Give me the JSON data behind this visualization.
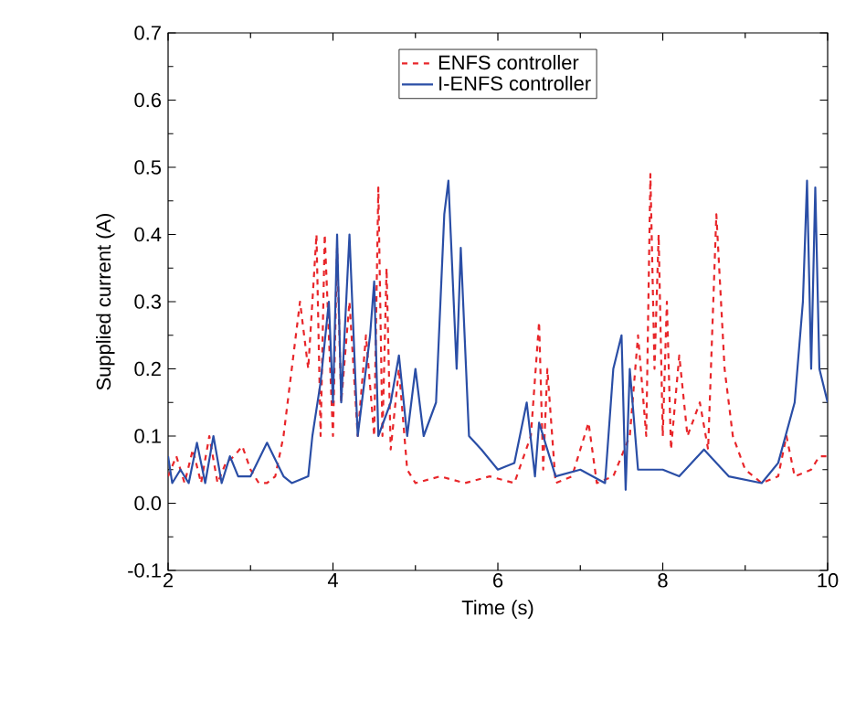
{
  "chart_data": {
    "type": "line",
    "xlabel": "Time (s)",
    "ylabel": "Supplied current (A)",
    "xlim": [
      2,
      10
    ],
    "ylim": [
      -0.1,
      0.7
    ],
    "xticks": [
      2,
      4,
      6,
      8,
      10
    ],
    "yticks": [
      {
        "value": -0.1,
        "label": "-0.1"
      },
      {
        "value": 0,
        "label": "0.0"
      },
      {
        "value": 0.1,
        "label": "0.1"
      },
      {
        "value": 0.2,
        "label": "0.2"
      },
      {
        "value": 0.3,
        "label": "0.3"
      },
      {
        "value": 0.4,
        "label": "0.4"
      },
      {
        "value": 0.5,
        "label": "0.5"
      },
      {
        "value": 0.6,
        "label": "0.6"
      },
      {
        "value": 0.7,
        "label": "0.7"
      }
    ],
    "legend": "top",
    "grid": false,
    "series": [
      {
        "name": "ENFS controller",
        "color": "#e8262a",
        "line_style": "dashed",
        "x": [
          2.0,
          2.1,
          2.2,
          2.3,
          2.4,
          2.5,
          2.6,
          2.7,
          2.8,
          2.9,
          3.0,
          3.1,
          3.2,
          3.3,
          3.4,
          3.5,
          3.6,
          3.7,
          3.8,
          3.85,
          3.9,
          4.0,
          4.05,
          4.1,
          4.2,
          4.3,
          4.4,
          4.5,
          4.55,
          4.6,
          4.65,
          4.7,
          4.8,
          4.9,
          5.0,
          5.3,
          5.6,
          5.9,
          6.2,
          6.4,
          6.5,
          6.55,
          6.6,
          6.7,
          6.9,
          7.1,
          7.2,
          7.4,
          7.6,
          7.7,
          7.8,
          7.85,
          7.9,
          7.95,
          8.0,
          8.05,
          8.1,
          8.2,
          8.3,
          8.45,
          8.55,
          8.65,
          8.75,
          8.85,
          9.0,
          9.2,
          9.4,
          9.5,
          9.6,
          9.8,
          9.9,
          10.0
        ],
        "values": [
          0.04,
          0.07,
          0.03,
          0.08,
          0.03,
          0.1,
          0.03,
          0.06,
          0.07,
          0.085,
          0.05,
          0.03,
          0.03,
          0.04,
          0.1,
          0.2,
          0.3,
          0.2,
          0.4,
          0.1,
          0.4,
          0.1,
          0.38,
          0.15,
          0.3,
          0.1,
          0.25,
          0.1,
          0.47,
          0.1,
          0.35,
          0.08,
          0.2,
          0.05,
          0.03,
          0.04,
          0.03,
          0.04,
          0.03,
          0.1,
          0.27,
          0.05,
          0.2,
          0.03,
          0.04,
          0.12,
          0.03,
          0.04,
          0.1,
          0.25,
          0.1,
          0.49,
          0.2,
          0.4,
          0.1,
          0.3,
          0.08,
          0.22,
          0.1,
          0.15,
          0.08,
          0.43,
          0.2,
          0.1,
          0.05,
          0.03,
          0.04,
          0.1,
          0.04,
          0.05,
          0.07,
          0.07
        ]
      },
      {
        "name": "I-ENFS controller",
        "color": "#2a4ea6",
        "line_style": "solid",
        "x": [
          2.0,
          2.05,
          2.15,
          2.25,
          2.35,
          2.45,
          2.55,
          2.65,
          2.75,
          2.85,
          3.0,
          3.2,
          3.4,
          3.5,
          3.7,
          3.75,
          3.85,
          3.95,
          4.0,
          4.05,
          4.1,
          4.2,
          4.3,
          4.45,
          4.5,
          4.55,
          4.7,
          4.8,
          4.9,
          5.0,
          5.1,
          5.25,
          5.35,
          5.4,
          5.5,
          5.55,
          5.65,
          5.8,
          6.0,
          6.2,
          6.35,
          6.45,
          6.5,
          6.7,
          7.0,
          7.3,
          7.4,
          7.5,
          7.55,
          7.6,
          7.7,
          8.0,
          8.2,
          8.5,
          8.8,
          9.2,
          9.4,
          9.6,
          9.7,
          9.75,
          9.8,
          9.85,
          9.9,
          10.0
        ],
        "values": [
          0.07,
          0.03,
          0.05,
          0.03,
          0.09,
          0.03,
          0.1,
          0.03,
          0.07,
          0.04,
          0.04,
          0.09,
          0.04,
          0.03,
          0.04,
          0.1,
          0.18,
          0.3,
          0.15,
          0.4,
          0.15,
          0.4,
          0.1,
          0.25,
          0.33,
          0.1,
          0.15,
          0.22,
          0.1,
          0.2,
          0.1,
          0.15,
          0.43,
          0.48,
          0.2,
          0.38,
          0.1,
          0.08,
          0.05,
          0.06,
          0.15,
          0.04,
          0.12,
          0.04,
          0.05,
          0.03,
          0.2,
          0.25,
          0.02,
          0.2,
          0.05,
          0.05,
          0.04,
          0.08,
          0.04,
          0.03,
          0.06,
          0.15,
          0.3,
          0.48,
          0.2,
          0.47,
          0.2,
          0.15
        ]
      }
    ]
  }
}
